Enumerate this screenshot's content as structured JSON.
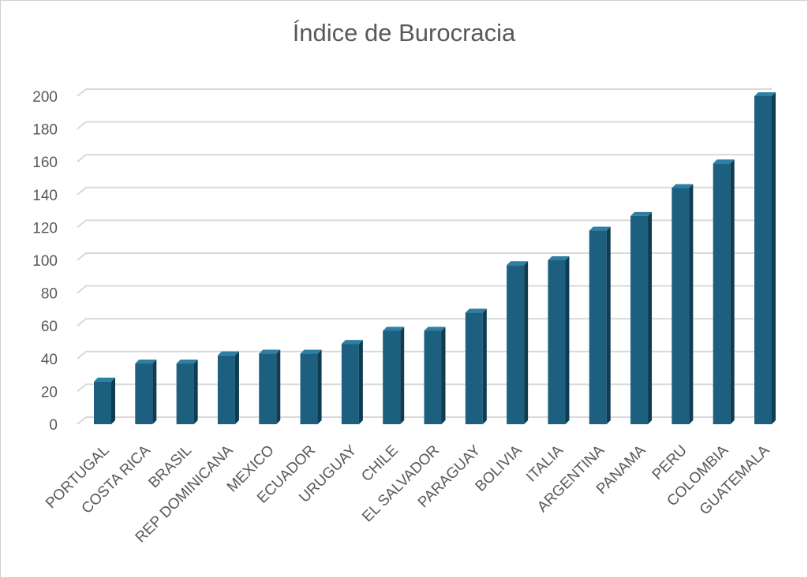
{
  "chart_data": {
    "type": "bar",
    "title": "Índice de Burocracia",
    "categories": [
      "PORTUGAL",
      "COSTA RICA",
      "BRASIL",
      "REP DOMINICANA",
      "MEXICO",
      "ECUADOR",
      "URUGUAY",
      "CHILE",
      "EL SALVADOR",
      "PARAGUAY",
      "BOLIVIA",
      "ITALIA",
      "ARGENTINA",
      "PANAMA",
      "PERU",
      "COLOMBIA",
      "GUATEMALA"
    ],
    "values": [
      26,
      37,
      37,
      42,
      43,
      43,
      49,
      57,
      57,
      68,
      97,
      100,
      118,
      127,
      144,
      159,
      200
    ],
    "ylim": [
      0,
      200
    ],
    "yticks": [
      0,
      20,
      40,
      60,
      80,
      100,
      120,
      140,
      160,
      180,
      200
    ],
    "xlabel": "",
    "ylabel": "",
    "grid": true,
    "legend": "none",
    "colors": {
      "bar_front": "#1d5f7f",
      "bar_side": "#0e3c52",
      "bar_top": "#2e7fa4",
      "grid": "#d9d9d9",
      "text": "#595959"
    }
  }
}
